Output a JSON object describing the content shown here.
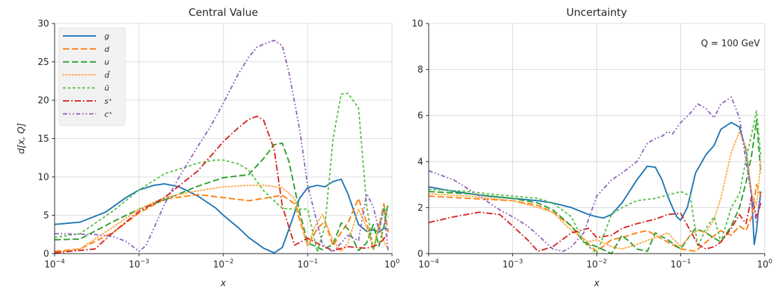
{
  "chart_data": [
    {
      "type": "line",
      "title": "Central Value",
      "xlabel": "x",
      "ylabel": "d[x, Q]",
      "xscale": "log",
      "xlim": [
        0.0001,
        1
      ],
      "ylim": [
        0,
        30
      ],
      "yticks": [
        "0",
        "5",
        "10",
        "15",
        "20",
        "25",
        "30"
      ],
      "xticks": [
        {
          "base": "10",
          "exp": "−4"
        },
        {
          "base": "10",
          "exp": "−3"
        },
        {
          "base": "10",
          "exp": "−2"
        },
        {
          "base": "10",
          "exp": "−1"
        },
        {
          "base": "10",
          "exp": "0"
        }
      ],
      "grid": true,
      "legend_position": "top-left",
      "series": [
        {
          "name": "g",
          "color": "#1f77b4",
          "dash": "solid",
          "x": [
            0.0001,
            0.0002,
            0.0004,
            0.0007,
            0.001,
            0.0015,
            0.002,
            0.003,
            0.005,
            0.008,
            0.01,
            0.015,
            0.02,
            0.03,
            0.04,
            0.05,
            0.06,
            0.08,
            0.1,
            0.13,
            0.16,
            0.2,
            0.25,
            0.3,
            0.4,
            0.5,
            0.6,
            0.7,
            0.8,
            0.9
          ],
          "y": [
            3.8,
            4.1,
            5.4,
            7.3,
            8.3,
            8.9,
            9.1,
            8.7,
            7.5,
            6.0,
            5.0,
            3.4,
            2.1,
            0.7,
            0.1,
            0.8,
            3.2,
            7.2,
            8.6,
            8.9,
            8.7,
            9.4,
            9.7,
            7.8,
            3.8,
            2.9,
            3.1,
            2.8,
            3.3,
            3.2
          ]
        },
        {
          "name": "d",
          "color": "#ff7f0e",
          "dash": "dashed",
          "x": [
            0.0001,
            0.0002,
            0.0005,
            0.001,
            0.002,
            0.005,
            0.01,
            0.02,
            0.03,
            0.05,
            0.07,
            0.1,
            0.13,
            0.16,
            0.2,
            0.25,
            0.3,
            0.4,
            0.5,
            0.6,
            0.7,
            0.8,
            0.9
          ],
          "y": [
            0.3,
            0.6,
            2.8,
            5.3,
            7.1,
            7.7,
            7.3,
            6.9,
            7.2,
            7.6,
            6.5,
            1.0,
            3.3,
            4.2,
            1.0,
            2.8,
            4.0,
            7.2,
            4.1,
            0.4,
            3.5,
            6.5,
            2.8
          ]
        },
        {
          "name": "u",
          "color": "#2ca02c",
          "dash": "dashed",
          "x": [
            0.0001,
            0.0002,
            0.0005,
            0.001,
            0.002,
            0.005,
            0.01,
            0.02,
            0.03,
            0.04,
            0.05,
            0.06,
            0.08,
            0.1,
            0.15,
            0.2,
            0.25,
            0.3,
            0.4,
            0.5,
            0.6,
            0.7,
            0.8,
            0.9
          ],
          "y": [
            1.8,
            1.9,
            4.2,
            5.8,
            7.0,
            8.8,
            9.9,
            10.3,
            12.4,
            14.2,
            14.4,
            12.0,
            5.5,
            1.4,
            0.5,
            1.2,
            4.0,
            3.2,
            0.4,
            1.4,
            3.8,
            1.0,
            3.5,
            6.6
          ]
        },
        {
          "name": "d̄",
          "color": "#ffa94d",
          "dash": "dotted",
          "x": [
            0.0001,
            0.0002,
            0.0005,
            0.001,
            0.002,
            0.005,
            0.01,
            0.02,
            0.03,
            0.05,
            0.07,
            0.1,
            0.12,
            0.15,
            0.2,
            0.25,
            0.3,
            0.4,
            0.5,
            0.6,
            0.7,
            0.8,
            0.9
          ],
          "y": [
            0.1,
            0.6,
            3.5,
            5.8,
            7.3,
            8.2,
            8.7,
            8.9,
            8.9,
            8.6,
            7.2,
            0.9,
            3.4,
            5.1,
            1.7,
            0.3,
            1.4,
            5.8,
            3.4,
            0.6,
            3.9,
            1.6,
            0.5
          ]
        },
        {
          "name": "ū",
          "color": "#5fc24f",
          "dash": "dashed-short",
          "x": [
            0.0001,
            0.0002,
            0.0005,
            0.001,
            0.002,
            0.005,
            0.008,
            0.01,
            0.015,
            0.02,
            0.03,
            0.05,
            0.07,
            0.1,
            0.13,
            0.16,
            0.2,
            0.25,
            0.3,
            0.4,
            0.5,
            0.6,
            0.7,
            0.8,
            0.9
          ],
          "y": [
            2.1,
            2.6,
            5.6,
            8.3,
            10.4,
            11.8,
            12.2,
            12.2,
            11.7,
            10.9,
            8.2,
            5.9,
            5.8,
            5.8,
            0.2,
            3.6,
            15.0,
            20.8,
            20.9,
            19.0,
            6.3,
            0.5,
            3.2,
            6.1,
            4.7
          ]
        },
        {
          "name": "s⁺",
          "color": "#d62728",
          "dash": "dashdot",
          "x": [
            0.0001,
            0.0003,
            0.0005,
            0.001,
            0.002,
            0.005,
            0.01,
            0.015,
            0.02,
            0.025,
            0.03,
            0.04,
            0.05,
            0.07,
            0.1,
            0.15,
            0.2,
            0.3,
            0.5,
            0.7,
            0.9
          ],
          "y": [
            0.1,
            0.6,
            2.8,
            5.5,
            7.3,
            10.8,
            14.6,
            16.4,
            17.5,
            17.9,
            17.4,
            13.6,
            6.2,
            1.1,
            2.0,
            1.0,
            0.4,
            0.9,
            0.7,
            1.2,
            2.6
          ]
        },
        {
          "name": "c⁺",
          "color": "#9467bd",
          "dash": "dashdotdot",
          "x": [
            0.0001,
            0.0003,
            0.0005,
            0.0007,
            0.001,
            0.0012,
            0.0015,
            0.002,
            0.003,
            0.005,
            0.007,
            0.01,
            0.015,
            0.02,
            0.025,
            0.03,
            0.04,
            0.05,
            0.06,
            0.08,
            0.1,
            0.15,
            0.2,
            0.3,
            0.4,
            0.5,
            0.6,
            0.7,
            0.8,
            0.9
          ],
          "y": [
            2.6,
            2.5,
            2.2,
            1.6,
            0.3,
            1.0,
            3.3,
            6.4,
            10.0,
            14.0,
            16.5,
            19.6,
            23.4,
            25.6,
            26.9,
            27.3,
            27.8,
            27.1,
            23.6,
            16.3,
            8.9,
            1.2,
            0.2,
            2.4,
            1.7,
            7.8,
            6.1,
            3.0,
            5.7,
            0.4
          ]
        }
      ]
    },
    {
      "type": "line",
      "title": "Uncertainty",
      "xlabel": "x",
      "ylabel": "",
      "xscale": "log",
      "xlim": [
        0.0001,
        1
      ],
      "ylim": [
        0,
        10
      ],
      "yticks": [
        "0",
        "2",
        "4",
        "6",
        "8",
        "10"
      ],
      "xticks": [
        {
          "base": "10",
          "exp": "−4"
        },
        {
          "base": "10",
          "exp": "−3"
        },
        {
          "base": "10",
          "exp": "−2"
        },
        {
          "base": "10",
          "exp": "−1"
        },
        {
          "base": "10",
          "exp": "0"
        }
      ],
      "grid": true,
      "annotation": "Q = 100 GeV",
      "series": [
        {
          "name": "g",
          "color": "#1f77b4",
          "dash": "solid",
          "x": [
            0.0001,
            0.0002,
            0.0005,
            0.001,
            0.002,
            0.003,
            0.005,
            0.008,
            0.01,
            0.012,
            0.015,
            0.02,
            0.03,
            0.04,
            0.05,
            0.06,
            0.07,
            0.08,
            0.09,
            0.1,
            0.12,
            0.15,
            0.2,
            0.25,
            0.3,
            0.4,
            0.5,
            0.6,
            0.7,
            0.75,
            0.8,
            0.85,
            0.9
          ],
          "y": [
            2.9,
            2.7,
            2.5,
            2.4,
            2.3,
            2.2,
            2.0,
            1.7,
            1.6,
            1.55,
            1.7,
            2.2,
            3.2,
            3.8,
            3.75,
            3.2,
            2.5,
            2.0,
            1.6,
            1.45,
            2.0,
            3.5,
            4.3,
            4.7,
            5.4,
            5.7,
            5.5,
            4.5,
            2.5,
            0.4,
            1.0,
            2.0,
            2.7
          ]
        },
        {
          "name": "d",
          "color": "#ff7f0e",
          "dash": "dashed",
          "x": [
            0.0001,
            0.0003,
            0.001,
            0.002,
            0.003,
            0.005,
            0.008,
            0.01,
            0.015,
            0.02,
            0.03,
            0.04,
            0.05,
            0.07,
            0.1,
            0.15,
            0.2,
            0.3,
            0.4,
            0.5,
            0.6,
            0.7,
            0.8,
            0.9
          ],
          "y": [
            2.5,
            2.4,
            2.3,
            2.1,
            1.8,
            1.2,
            0.4,
            0.1,
            0.6,
            0.7,
            0.9,
            1.0,
            0.8,
            0.5,
            0.2,
            0.1,
            0.5,
            1.0,
            0.8,
            1.2,
            1.0,
            1.6,
            3.0,
            2.5
          ]
        },
        {
          "name": "u",
          "color": "#2ca02c",
          "dash": "dashed",
          "x": [
            0.0001,
            0.0003,
            0.001,
            0.002,
            0.003,
            0.005,
            0.007,
            0.01,
            0.015,
            0.02,
            0.025,
            0.03,
            0.04,
            0.05,
            0.07,
            0.1,
            0.13,
            0.15,
            0.2,
            0.3,
            0.4,
            0.5,
            0.6,
            0.7,
            0.8,
            0.9
          ],
          "y": [
            2.7,
            2.6,
            2.4,
            2.2,
            1.9,
            1.2,
            0.5,
            0.3,
            0.0,
            0.8,
            0.5,
            0.2,
            0.1,
            0.9,
            0.6,
            0.2,
            0.8,
            1.1,
            0.9,
            0.5,
            1.2,
            2.0,
            3.1,
            4.3,
            5.8,
            3.5
          ]
        },
        {
          "name": "d̄",
          "color": "#ffa94d",
          "dash": "dotted",
          "x": [
            0.0001,
            0.0003,
            0.001,
            0.002,
            0.003,
            0.005,
            0.008,
            0.01,
            0.015,
            0.02,
            0.03,
            0.05,
            0.07,
            0.1,
            0.13,
            0.16,
            0.2,
            0.25,
            0.3,
            0.4,
            0.5,
            0.6,
            0.7,
            0.8,
            0.9
          ],
          "y": [
            2.6,
            2.5,
            2.3,
            2.0,
            1.8,
            1.0,
            0.5,
            0.6,
            0.3,
            0.2,
            0.4,
            0.7,
            0.9,
            0.3,
            0.8,
            1.0,
            0.9,
            1.5,
            2.4,
            4.4,
            5.3,
            4.6,
            2.6,
            2.1,
            4.0
          ]
        },
        {
          "name": "ū",
          "color": "#5fc24f",
          "dash": "dashed-short",
          "x": [
            0.0001,
            0.0003,
            0.0005,
            0.001,
            0.002,
            0.003,
            0.005,
            0.007,
            0.01,
            0.015,
            0.02,
            0.03,
            0.05,
            0.08,
            0.1,
            0.13,
            0.16,
            0.2,
            0.25,
            0.3,
            0.4,
            0.5,
            0.6,
            0.7,
            0.8,
            0.9
          ],
          "y": [
            2.8,
            2.7,
            2.6,
            2.5,
            2.4,
            2.2,
            1.6,
            0.5,
            0.0,
            1.7,
            2.0,
            2.3,
            2.4,
            2.6,
            2.7,
            2.5,
            0.3,
            1.1,
            1.6,
            0.5,
            2.0,
            2.6,
            4.1,
            5.2,
            6.2,
            4.2
          ]
        },
        {
          "name": "s⁺",
          "color": "#d62728",
          "dash": "dashdot",
          "x": [
            0.0001,
            0.0002,
            0.0004,
            0.0007,
            0.001,
            0.0015,
            0.002,
            0.003,
            0.005,
            0.008,
            0.01,
            0.015,
            0.02,
            0.03,
            0.05,
            0.07,
            0.1,
            0.13,
            0.16,
            0.2,
            0.25,
            0.3,
            0.4,
            0.5,
            0.6,
            0.7,
            0.8,
            0.9
          ],
          "y": [
            1.35,
            1.6,
            1.8,
            1.7,
            1.2,
            0.6,
            0.1,
            0.3,
            0.9,
            1.1,
            0.7,
            0.8,
            1.1,
            1.3,
            1.5,
            1.7,
            1.75,
            1.0,
            0.4,
            0.2,
            0.3,
            0.5,
            1.1,
            1.7,
            1.3,
            2.5,
            1.6,
            2.2
          ]
        },
        {
          "name": "c⁺",
          "color": "#9467bd",
          "dash": "dashdotdot",
          "x": [
            0.0001,
            0.0002,
            0.0004,
            0.0007,
            0.001,
            0.0015,
            0.002,
            0.003,
            0.004,
            0.005,
            0.007,
            0.01,
            0.015,
            0.02,
            0.03,
            0.04,
            0.05,
            0.06,
            0.07,
            0.08,
            0.1,
            0.13,
            0.16,
            0.2,
            0.25,
            0.3,
            0.4,
            0.5,
            0.6,
            0.7,
            0.8,
            0.9
          ],
          "y": [
            3.6,
            3.2,
            2.5,
            1.9,
            1.6,
            1.2,
            0.8,
            0.2,
            0.1,
            0.3,
            0.9,
            2.5,
            3.2,
            3.5,
            4.0,
            4.8,
            5.0,
            5.1,
            5.3,
            5.2,
            5.7,
            6.1,
            6.5,
            6.3,
            5.9,
            6.5,
            6.8,
            5.9,
            4.0,
            2.5,
            1.3,
            2.5
          ]
        }
      ]
    }
  ]
}
